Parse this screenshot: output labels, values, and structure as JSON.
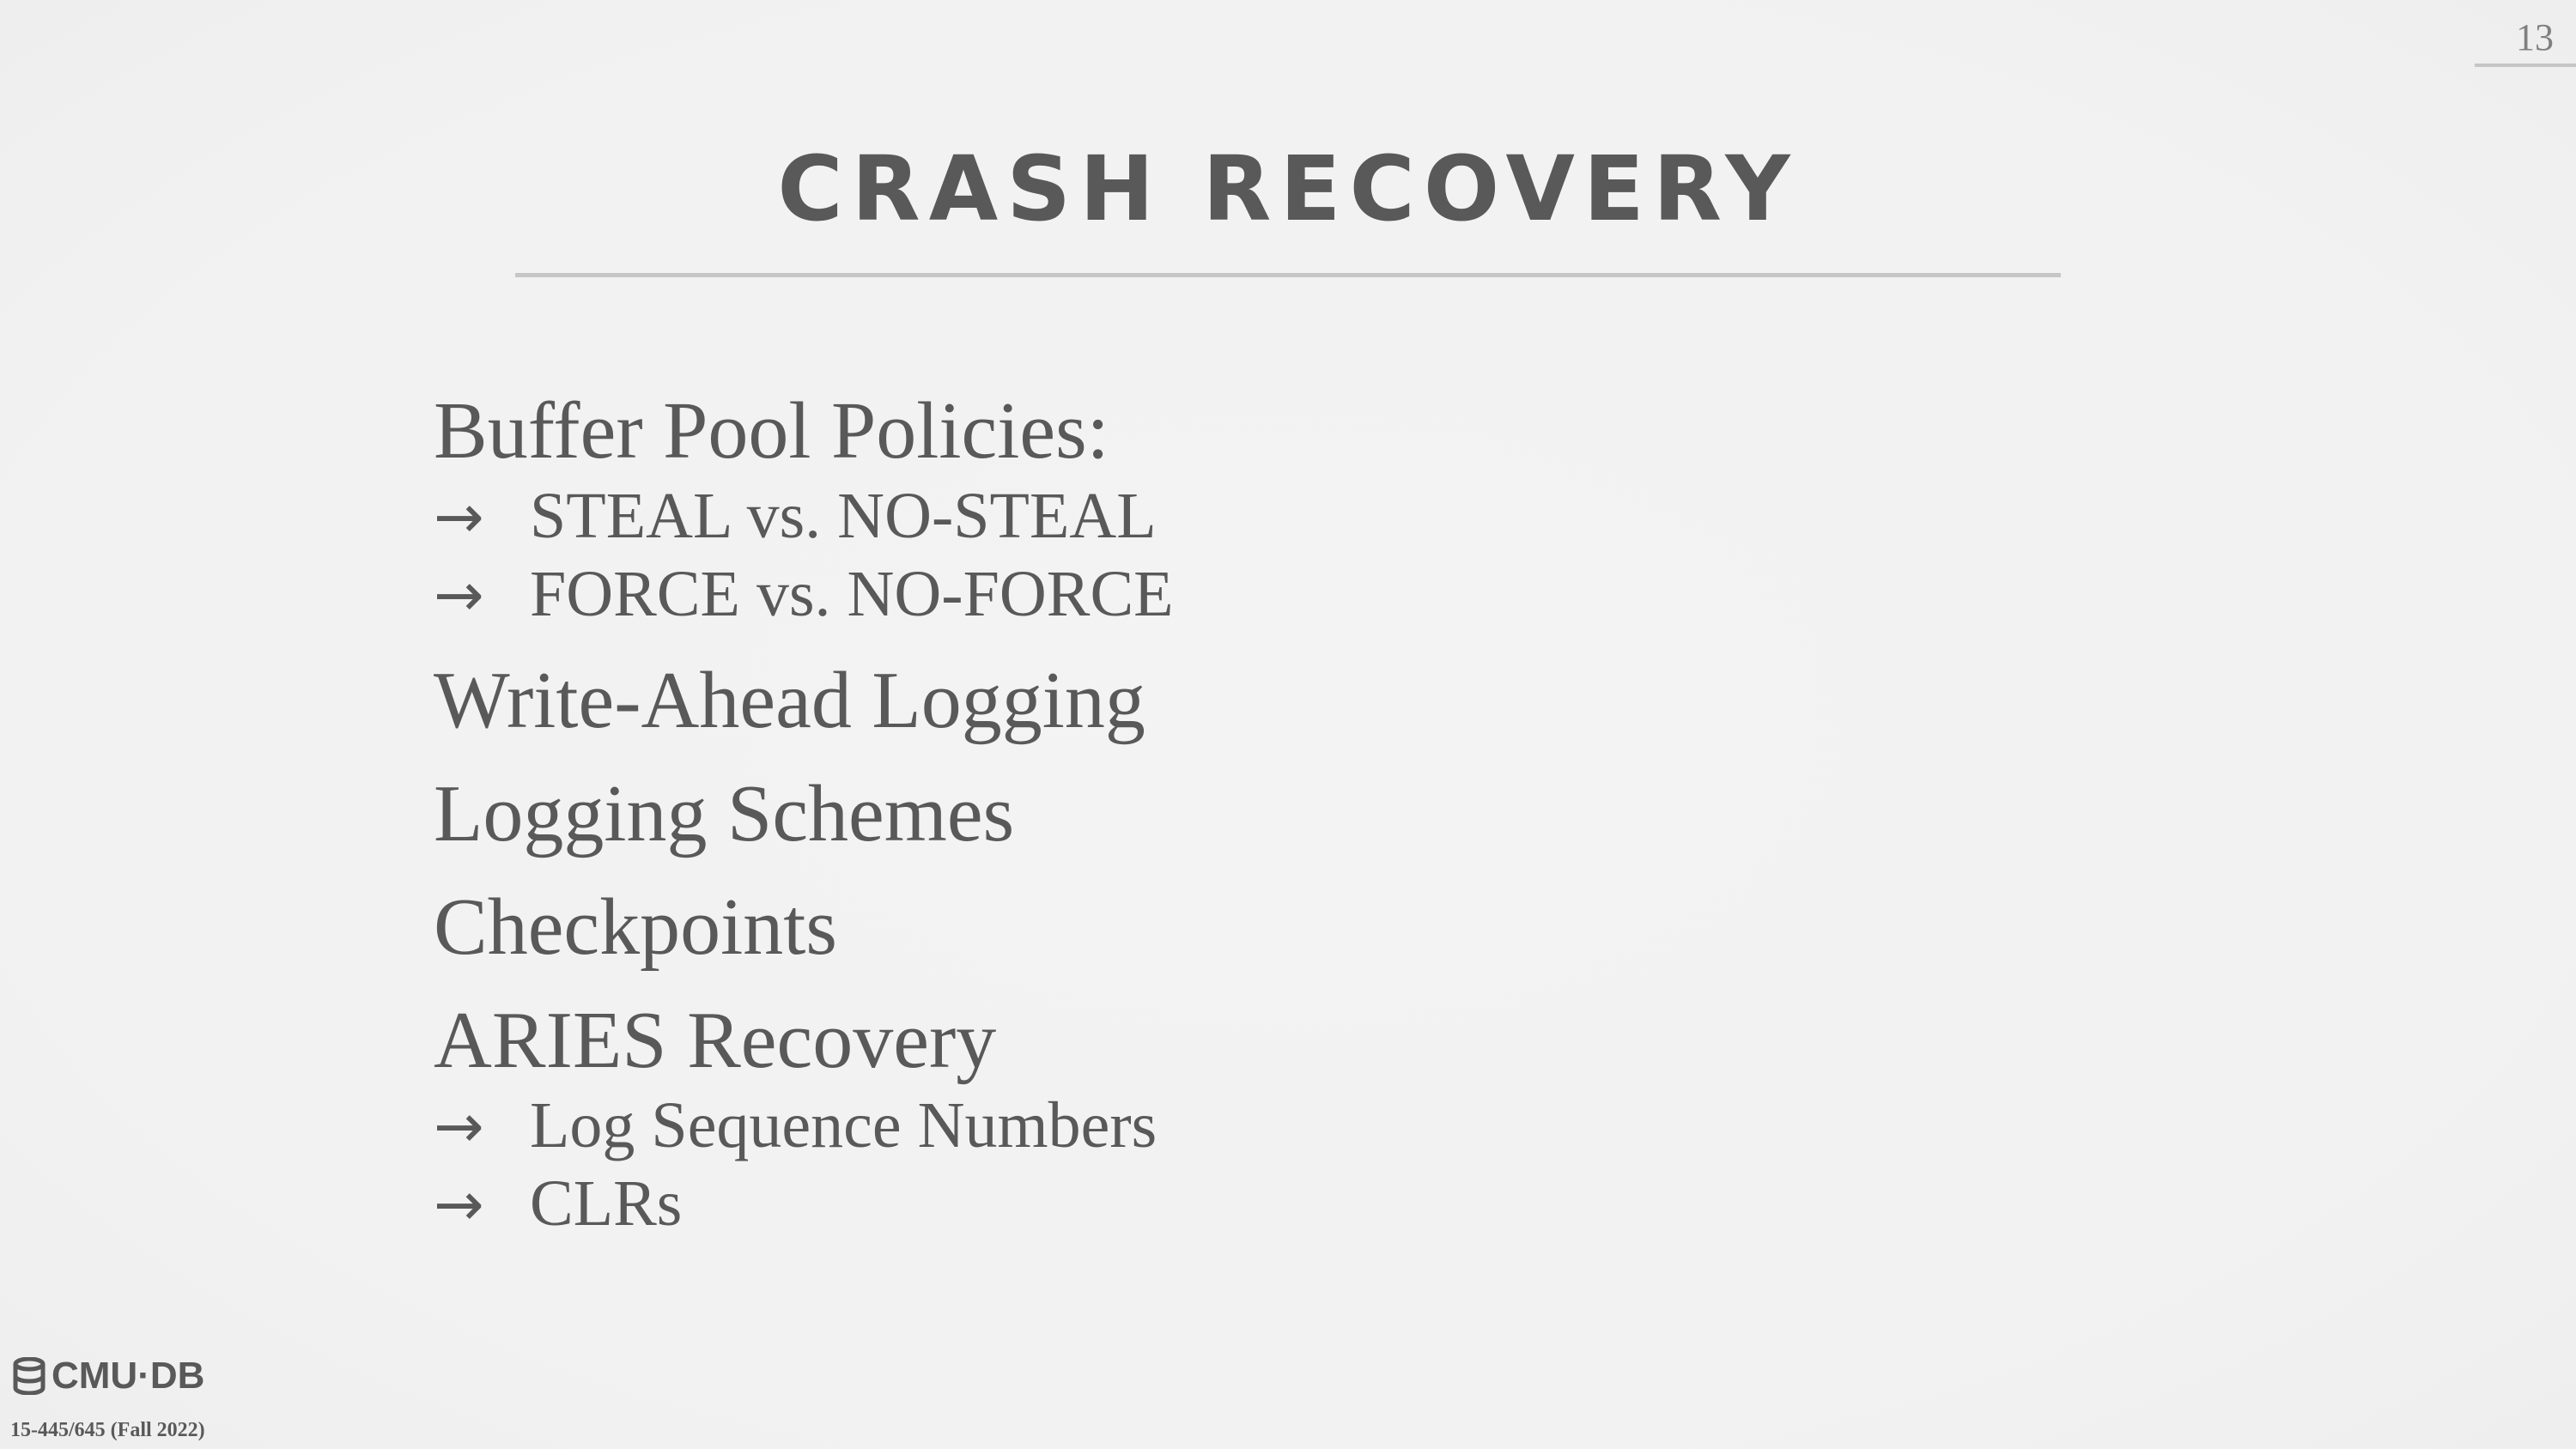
{
  "slide": {
    "page_number": "13",
    "title": "CRASH RECOVERY",
    "items": [
      {
        "label": "Buffer Pool Policies:",
        "subitems": [
          "STEAL vs. NO-STEAL",
          "FORCE vs. NO-FORCE"
        ]
      },
      {
        "label": "Write-Ahead Logging",
        "subitems": []
      },
      {
        "label": "Logging Schemes",
        "subitems": []
      },
      {
        "label": "Checkpoints",
        "subitems": []
      },
      {
        "label": "ARIES Recovery",
        "subitems": [
          "Log Sequence Numbers",
          "CLRs"
        ]
      }
    ],
    "arrow_glyph": "→"
  },
  "footer": {
    "logo_text": "CMU·DB",
    "logo_icon": "database-icon",
    "course": "15-445/645 (Fall 2022)"
  },
  "colors": {
    "background": "#f2f2f2",
    "text": "#595959",
    "rule": "#c6c6c6"
  }
}
